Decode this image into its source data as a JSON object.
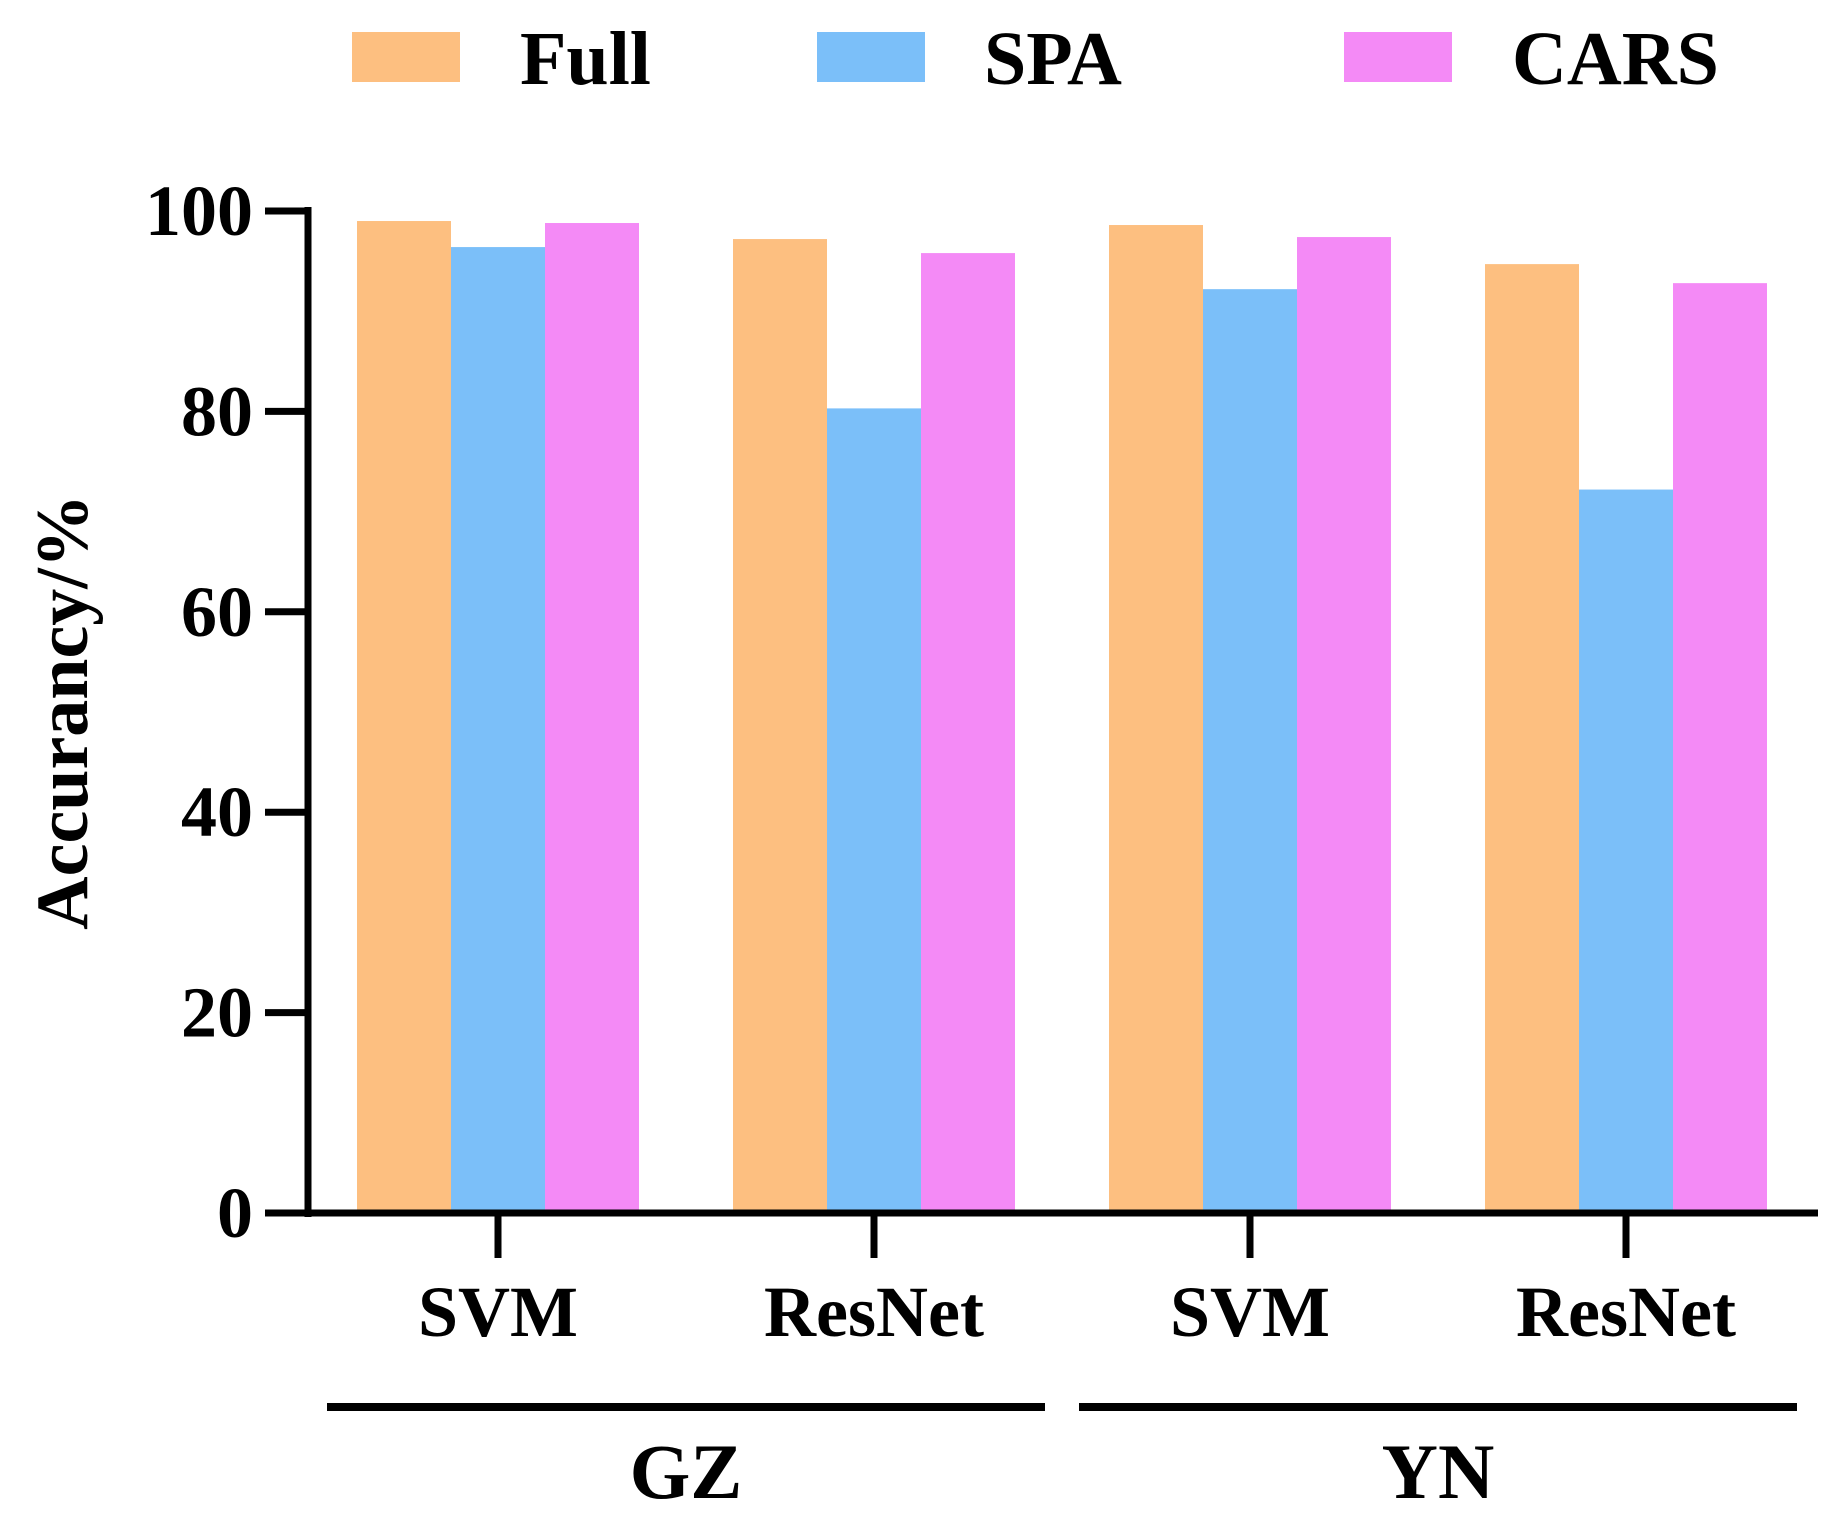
{
  "chart_data": {
    "type": "bar",
    "title": "",
    "xlabel": "",
    "ylabel": "Accurancy/%",
    "ylim": [
      0,
      100
    ],
    "yticks": [
      0,
      20,
      40,
      60,
      80,
      100
    ],
    "grid": false,
    "legend_position": "top",
    "categories": [
      "SVM",
      "ResNet",
      "SVM",
      "ResNet"
    ],
    "groups": [
      {
        "label": "GZ",
        "categories": [
          0,
          1
        ]
      },
      {
        "label": "YN",
        "categories": [
          2,
          3
        ]
      }
    ],
    "series": [
      {
        "name": "Full",
        "color": "#FDBF80",
        "values": [
          99.0,
          97.2,
          98.6,
          94.7
        ]
      },
      {
        "name": "SPA",
        "color": "#7BBFF9",
        "values": [
          96.4,
          80.3,
          92.2,
          72.2
        ]
      },
      {
        "name": "CARS",
        "color": "#F48AF6",
        "values": [
          98.8,
          95.8,
          97.4,
          92.8
        ]
      }
    ]
  }
}
